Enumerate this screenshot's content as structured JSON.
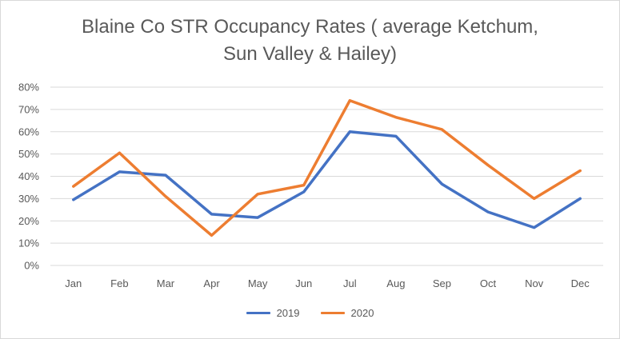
{
  "chart_data": {
    "type": "line",
    "title_line1": "Blaine Co STR Occupancy Rates ( average Ketchum,",
    "title_line2": "Sun Valley & Hailey)",
    "categories": [
      "Jan",
      "Feb",
      "Mar",
      "Apr",
      "May",
      "Jun",
      "Jul",
      "Aug",
      "Sep",
      "Oct",
      "Nov",
      "Dec"
    ],
    "y_ticks": [
      "0%",
      "10%",
      "20%",
      "30%",
      "40%",
      "50%",
      "60%",
      "70%",
      "80%"
    ],
    "ylim": [
      0,
      80
    ],
    "grid": true,
    "legend_position": "bottom",
    "series": [
      {
        "name": "2019",
        "color": "#4472C4",
        "values": [
          29.5,
          42,
          40.5,
          23,
          21.5,
          33,
          60,
          58,
          36.5,
          24,
          17,
          30
        ]
      },
      {
        "name": "2020",
        "color": "#ED7D31",
        "values": [
          35.5,
          50.5,
          31,
          13.5,
          32,
          36,
          74,
          66.5,
          61,
          45,
          30,
          42.5
        ]
      }
    ]
  }
}
